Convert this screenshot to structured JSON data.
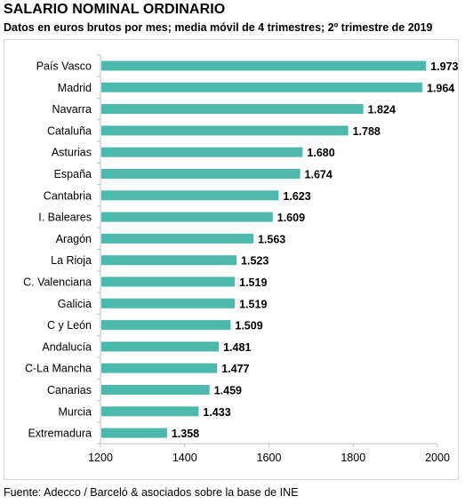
{
  "title": "SALARIO NOMINAL ORDINARIO",
  "subtitle": "Datos en euros brutos por mes; media móvil de 4 trimestres; 2º trimestre de 2019",
  "source": "Fuente: Adecco / Barceló & asociados sobre la base de INE",
  "colors": {
    "bar": "#4db9ad",
    "axis": "#bfbfbf"
  },
  "chart_data": {
    "type": "bar",
    "orientation": "horizontal",
    "title": "SALARIO NOMINAL ORDINARIO",
    "subtitle": "Datos en euros brutos por mes; media móvil de 4 trimestres; 2º trimestre de 2019",
    "categories": [
      "País Vasco",
      "Madrid",
      "Navarra",
      "Cataluña",
      "Asturias",
      "España",
      "Cantabria",
      "I. Baleares",
      "Aragón",
      "La Rioja",
      "C. Valenciana",
      "Galicia",
      "C y León",
      "Andalucía",
      "C-La Mancha",
      "Canarias",
      "Murcia",
      "Extremadura"
    ],
    "values": [
      1973,
      1964,
      1824,
      1788,
      1680,
      1674,
      1623,
      1609,
      1563,
      1523,
      1519,
      1519,
      1509,
      1481,
      1477,
      1459,
      1433,
      1358
    ],
    "value_labels": [
      "1.973",
      "1.964",
      "1.824",
      "1.788",
      "1.680",
      "1.674",
      "1.623",
      "1.609",
      "1.563",
      "1.523",
      "1.519",
      "1.519",
      "1.509",
      "1.481",
      "1.477",
      "1.459",
      "1.433",
      "1.358"
    ],
    "xlim": [
      1200,
      2000
    ],
    "xticks": [
      1200,
      1400,
      1600,
      1800,
      2000
    ],
    "xtick_labels": [
      "1200",
      "1400",
      "1600",
      "1800",
      "2000"
    ],
    "grid": false,
    "legend": "none"
  }
}
